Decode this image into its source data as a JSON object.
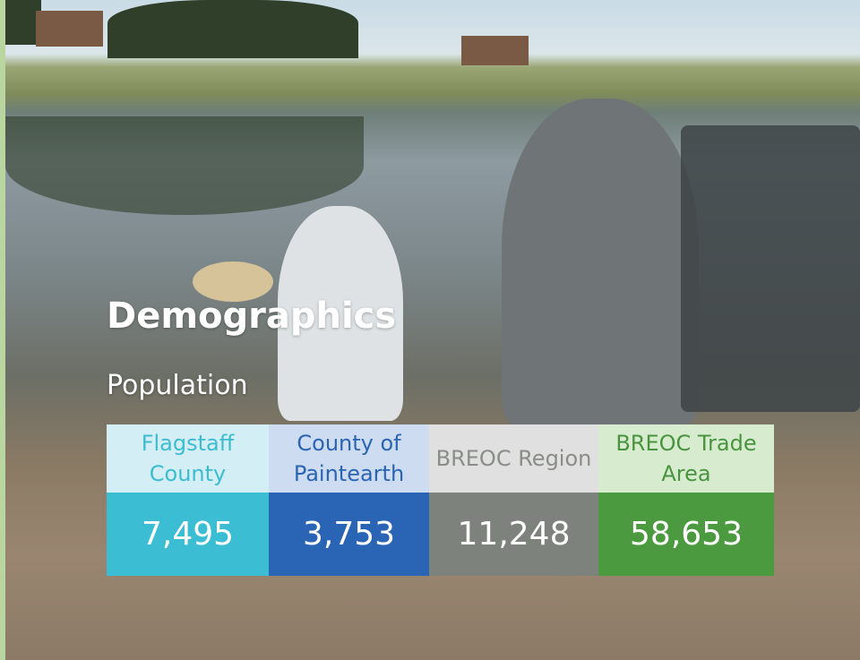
{
  "title": "Demographics",
  "subtitle": "Population",
  "table": {
    "columns": [
      {
        "name": "Flagstaff County",
        "value": "7,495",
        "header_bg": "#d3eff5",
        "header_color": "#3bbcd0",
        "value_bg": "#3bbdd4"
      },
      {
        "name": "County of Paintearth",
        "value": "3,753",
        "header_bg": "#cddcf0",
        "header_color": "#2a64b3",
        "value_bg": "#2a65b5"
      },
      {
        "name": "BREOC Region",
        "value": "11,248",
        "header_bg": "#dfe0df",
        "header_color": "#8a8d88",
        "value_bg": "#7e827d"
      },
      {
        "name": "BREOC Trade Area",
        "value": "58,653",
        "header_bg": "#d7eccf",
        "header_color": "#4a943f",
        "value_bg": "#4c9a40"
      }
    ]
  }
}
